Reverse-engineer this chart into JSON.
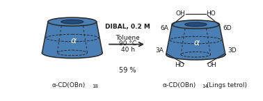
{
  "fig_width": 3.78,
  "fig_height": 1.45,
  "dpi": 100,
  "background": "#ffffff",
  "cone_color_face": "#4a7fb5",
  "cone_color_edge": "#2a2a2a",
  "cone_color_dark": "#1a4f85",
  "text_color": "#1a1a1a",
  "reaction_line1": "DIBAL, 0.2 M",
  "reaction_line2": "Toluene",
  "reaction_line3": "90 °C",
  "reaction_line4": "40 h",
  "yield_text": "59 %",
  "label_left": "α-CD(OBn)",
  "label_left_sub": "18",
  "label_right": "α-CD(OBn)",
  "label_right_sub": "14",
  "label_right_extra": " (Lings tetrol)",
  "alpha_left": "α",
  "alpha_right": "α",
  "label_6A": "6A",
  "label_6D": "6D",
  "label_3A": "3A",
  "label_3D": "3D",
  "label_OH_6A": "OH",
  "label_HO_6D": "HO",
  "label_HO_3A": "HO",
  "label_OH_3D": "OH"
}
